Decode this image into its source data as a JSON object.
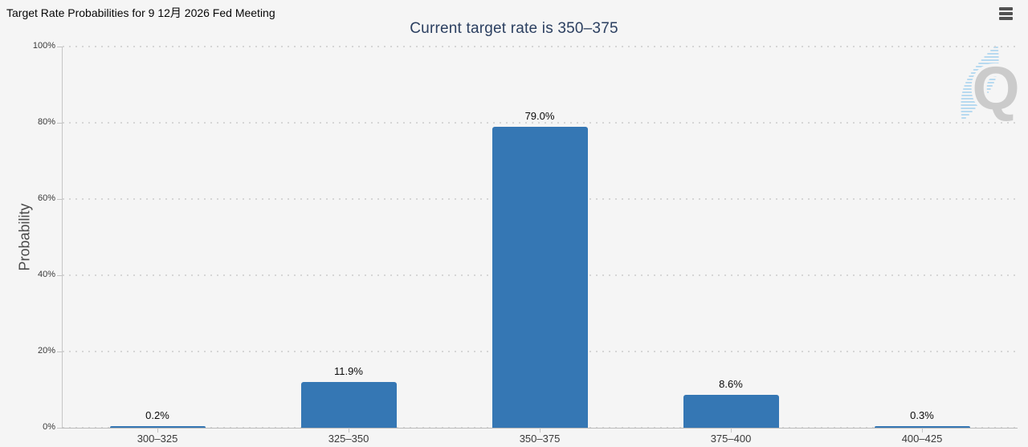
{
  "header": {
    "title": "Target Rate Probabilities for 9 12月 2026 Fed Meeting",
    "menu_icon": "hamburger-icon"
  },
  "watermark": {
    "letter": "Q"
  },
  "colors": {
    "background": "#f5f5f5",
    "bar": "#3577b4",
    "title_text": "#2b3f60",
    "grid_dot": "#d6d6d6",
    "watermark_letter": "#c9c9c9",
    "watermark_streak": "#a9d3ee"
  },
  "chart_data": {
    "type": "bar",
    "title": "Current target rate is 350–375",
    "categories": [
      "300–325",
      "325–350",
      "350–375",
      "375–400",
      "400–425"
    ],
    "values": [
      0.2,
      11.9,
      79.0,
      8.6,
      0.3
    ],
    "value_labels": [
      "0.2%",
      "11.9%",
      "79.0%",
      "8.6%",
      "0.3%"
    ],
    "xlabel": "",
    "ylabel": "Probability",
    "ylim": [
      0,
      100
    ],
    "ytick_step": 20,
    "ytick_labels": [
      "0%",
      "20%",
      "40%",
      "60%",
      "80%",
      "100%"
    ],
    "grid": "dotted horizontal",
    "legend": "none"
  }
}
